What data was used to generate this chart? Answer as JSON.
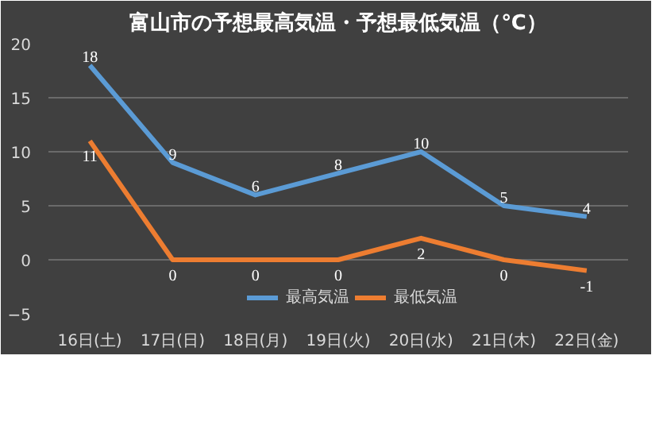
{
  "chart_data": {
    "type": "line",
    "title": "富山市の予想最高気温・予想最低気温（℃）",
    "categories": [
      "16日(土)",
      "17日(日)",
      "18日(月)",
      "19日(火)",
      "20日(水)",
      "21日(木)",
      "22日(金)"
    ],
    "series": [
      {
        "name": "最高気温",
        "color": "#5b9bd5",
        "values": [
          18,
          9,
          6,
          8,
          10,
          5,
          4
        ]
      },
      {
        "name": "最低気温",
        "color": "#ed7d31",
        "values": [
          11,
          0,
          0,
          0,
          2,
          0,
          -1
        ]
      }
    ],
    "ylim": [
      -5,
      20
    ],
    "yticks": [
      -5,
      0,
      5,
      10,
      15,
      20
    ],
    "grid": "y",
    "legend": "bottom right",
    "data_labels": true,
    "line_style": "solid",
    "marker": "none"
  }
}
